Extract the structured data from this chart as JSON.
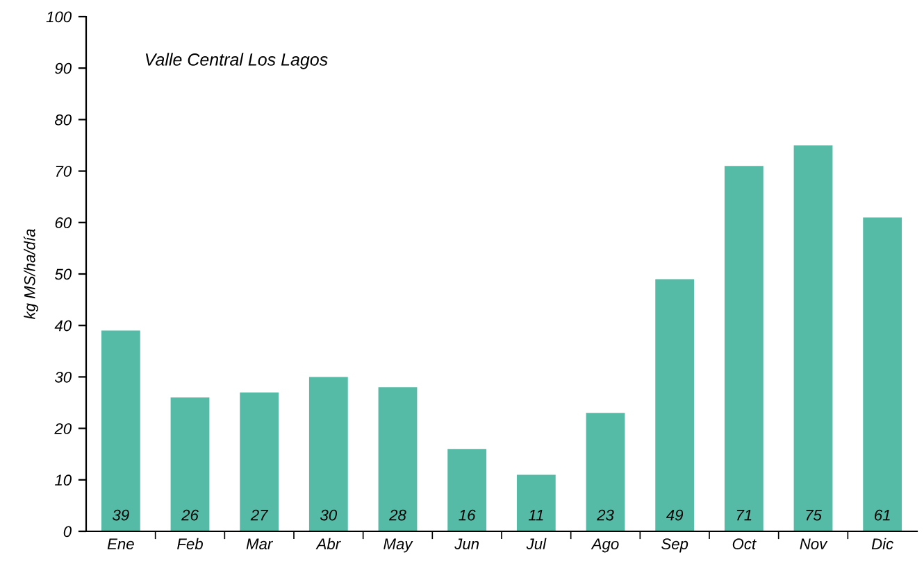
{
  "chart_data": {
    "type": "bar",
    "title": "Valle Central Los Lagos",
    "ylabel": "kg MS/ha/día",
    "categories": [
      "Ene",
      "Feb",
      "Mar",
      "Abr",
      "May",
      "Jun",
      "Jul",
      "Ago",
      "Sep",
      "Oct",
      "Nov",
      "Dic"
    ],
    "values": [
      39,
      26,
      27,
      30,
      28,
      16,
      11,
      23,
      49,
      71,
      75,
      61
    ],
    "color": "#56bba6",
    "ylim": [
      0,
      100
    ],
    "yticks": [
      0,
      10,
      20,
      30,
      40,
      50,
      60,
      70,
      80,
      90,
      100
    ],
    "grid": false,
    "data_labels": true
  }
}
